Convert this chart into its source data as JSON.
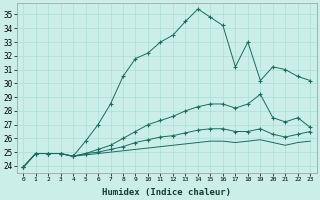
{
  "xlabel": "Humidex (Indice chaleur)",
  "background_color": "#cceee8",
  "grid_color": "#aaddd8",
  "line_color": "#1a6b60",
  "xlim": [
    -0.5,
    23.5
  ],
  "ylim": [
    23.5,
    35.8
  ],
  "yticks": [
    24,
    25,
    26,
    27,
    28,
    29,
    30,
    31,
    32,
    33,
    34,
    35
  ],
  "xticks": [
    0,
    1,
    2,
    3,
    4,
    5,
    6,
    7,
    8,
    9,
    10,
    11,
    12,
    13,
    14,
    15,
    16,
    17,
    18,
    19,
    20,
    21,
    22,
    23
  ],
  "series": [
    {
      "x": [
        0,
        1,
        2,
        3,
        4,
        5,
        6,
        7,
        8,
        9,
        10,
        11,
        12,
        13,
        14,
        15,
        16,
        17,
        18,
        19,
        20,
        21,
        22,
        23
      ],
      "y": [
        23.9,
        24.9,
        24.9,
        24.9,
        24.7,
        25.8,
        27.0,
        28.5,
        30.5,
        31.8,
        32.2,
        33.0,
        33.5,
        34.5,
        35.4,
        34.8,
        34.2,
        31.2,
        33.0,
        30.2,
        31.2,
        31.0,
        30.5,
        30.2
      ],
      "marker": "+",
      "linestyle": "-"
    },
    {
      "x": [
        0,
        1,
        2,
        3,
        4,
        5,
        6,
        7,
        8,
        9,
        10,
        11,
        12,
        13,
        14,
        15,
        16,
        17,
        18,
        19,
        20,
        21,
        22,
        23
      ],
      "y": [
        23.9,
        24.9,
        24.9,
        24.9,
        24.7,
        24.9,
        25.2,
        25.5,
        26.0,
        26.5,
        27.0,
        27.3,
        27.6,
        28.0,
        28.3,
        28.5,
        28.5,
        28.2,
        28.5,
        29.2,
        27.5,
        27.2,
        27.5,
        26.8
      ],
      "marker": "+",
      "linestyle": "-"
    },
    {
      "x": [
        0,
        1,
        2,
        3,
        4,
        5,
        6,
        7,
        8,
        9,
        10,
        11,
        12,
        13,
        14,
        15,
        16,
        17,
        18,
        19,
        20,
        21,
        22,
        23
      ],
      "y": [
        23.9,
        24.9,
        24.9,
        24.9,
        24.7,
        24.9,
        25.0,
        25.2,
        25.4,
        25.7,
        25.9,
        26.1,
        26.2,
        26.4,
        26.6,
        26.7,
        26.7,
        26.5,
        26.5,
        26.7,
        26.3,
        26.1,
        26.3,
        26.5
      ],
      "marker": "+",
      "linestyle": "-"
    },
    {
      "x": [
        0,
        1,
        2,
        3,
        4,
        5,
        6,
        7,
        8,
        9,
        10,
        11,
        12,
        13,
        14,
        15,
        16,
        17,
        18,
        19,
        20,
        21,
        22,
        23
      ],
      "y": [
        23.9,
        24.9,
        24.9,
        24.9,
        24.7,
        24.8,
        24.9,
        25.0,
        25.1,
        25.2,
        25.3,
        25.4,
        25.5,
        25.6,
        25.7,
        25.8,
        25.8,
        25.7,
        25.8,
        25.9,
        25.7,
        25.5,
        25.7,
        25.8
      ],
      "marker": null,
      "linestyle": "-"
    }
  ]
}
